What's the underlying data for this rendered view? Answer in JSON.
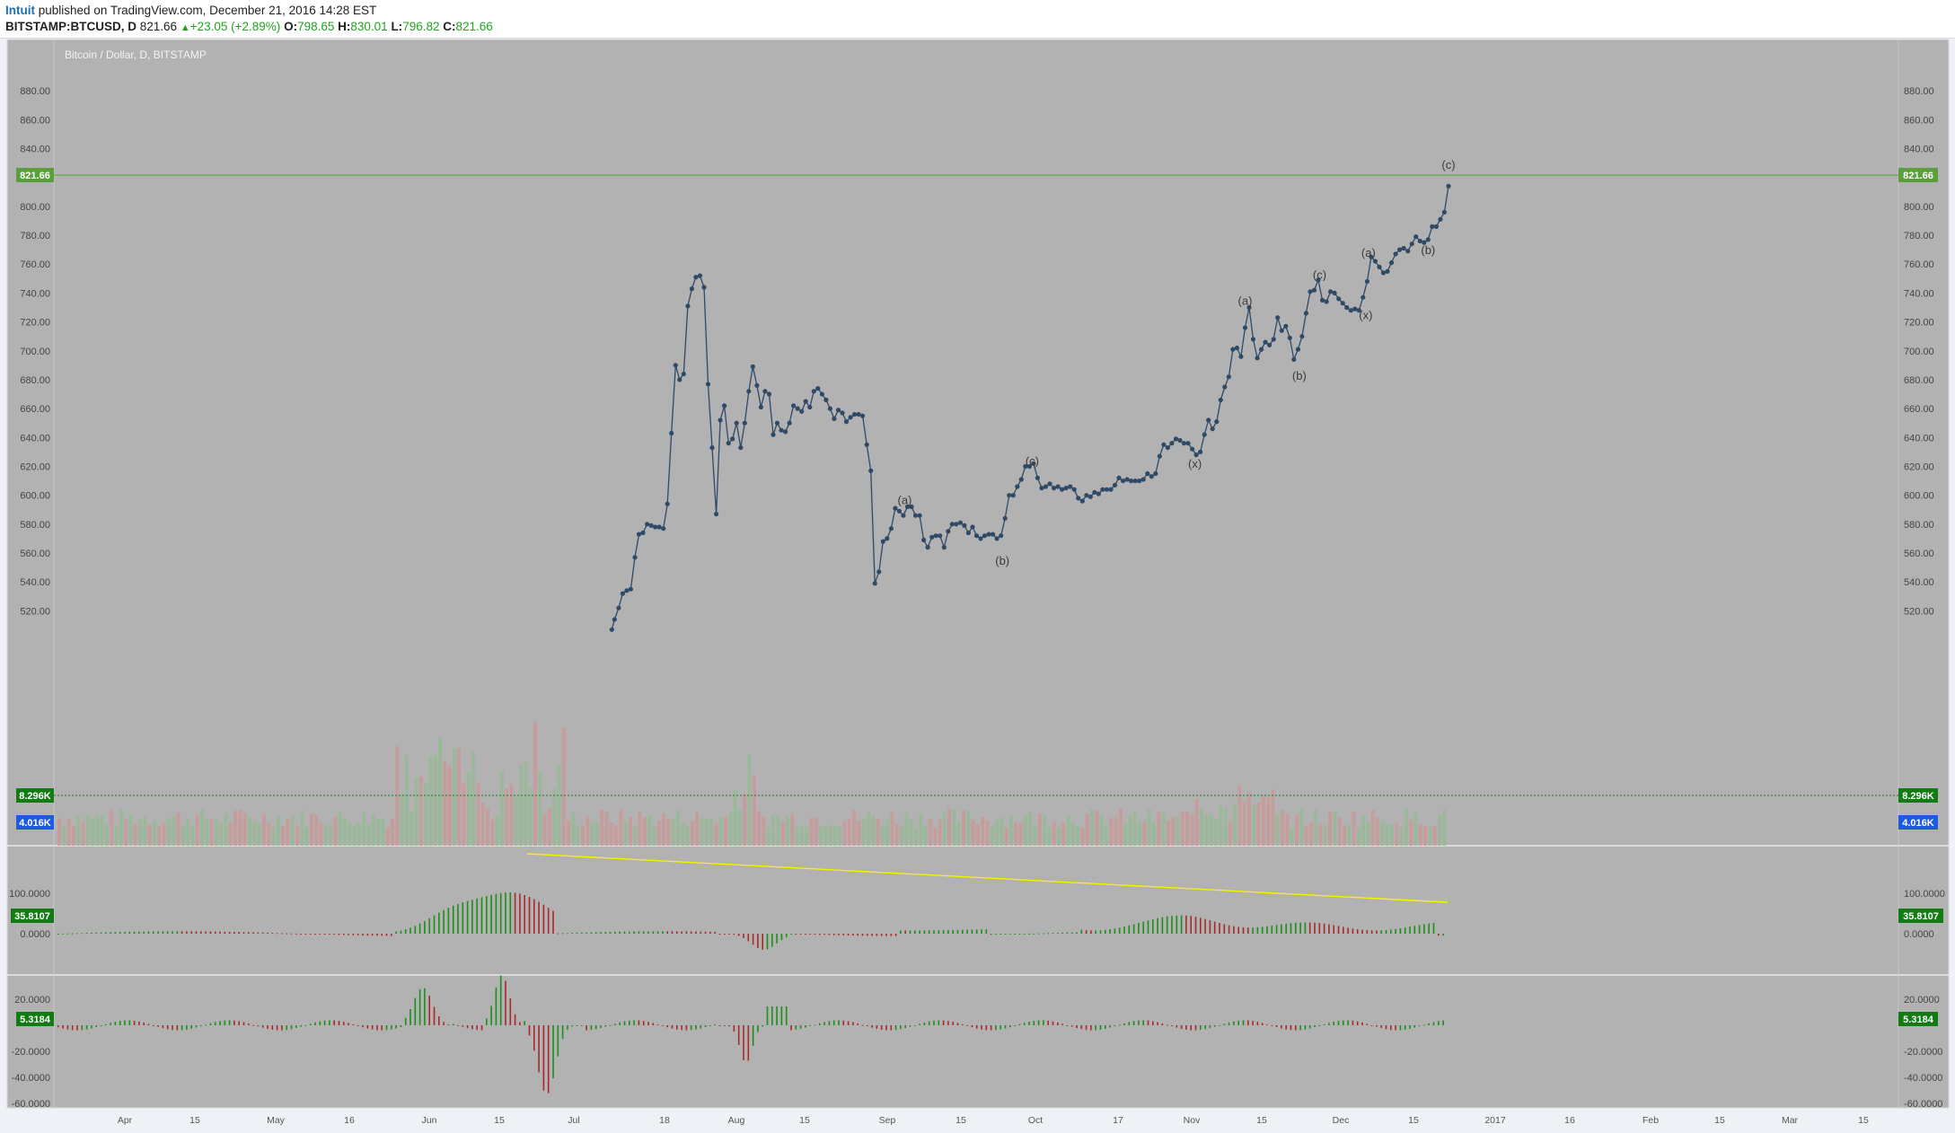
{
  "header": {
    "author": "Intuit",
    "published_text": "published on TradingView.com, December 21, 2016 14:28 EST",
    "symbol": "BITSTAMP:BTCUSD, D",
    "last": "821.66",
    "change": "+23.05 (+2.89%)",
    "o_label": "O:",
    "o": "798.65",
    "h_label": "H:",
    "h": "830.01",
    "l_label": "L:",
    "l": "796.82",
    "c_label": "C:",
    "c": "821.66"
  },
  "chart_data": {
    "type": "line",
    "title": "Bitcoin / Dollar, D, BITSTAMP",
    "price_ticks": [
      "880.00",
      "860.00",
      "840.00",
      "820.00",
      "800.00",
      "780.00",
      "760.00",
      "740.00",
      "720.00",
      "700.00",
      "680.00",
      "660.00",
      "640.00",
      "620.00",
      "600.00",
      "580.00",
      "560.00",
      "540.00",
      "520.00"
    ],
    "price_ylim": [
      505,
      890
    ],
    "last_price_label": "821.66",
    "volume_last_label": "8.296K",
    "volume_ma_label": "4.016K",
    "osc1_ticks": [
      "100.0000",
      "0.0000"
    ],
    "osc1_label": "35.8107",
    "osc2_ticks": [
      "20.0000",
      "-20.0000",
      "-40.0000",
      "-60.0000"
    ],
    "osc2_label": "5.3184",
    "x_labels": [
      "Apr",
      "15",
      "May",
      "16",
      "Jun",
      "15",
      "Jul",
      "18",
      "Aug",
      "15",
      "Sep",
      "15",
      "Oct",
      "17",
      "Nov",
      "15",
      "Dec",
      "15",
      "2017",
      "16",
      "Feb",
      "15",
      "Mar",
      "15"
    ],
    "series": [
      {
        "values": [
          [
            43.0,
            507
          ],
          [
            43.2,
            514
          ],
          [
            43.5,
            522
          ],
          [
            43.8,
            532
          ],
          [
            44.1,
            534
          ],
          [
            44.4,
            535
          ],
          [
            44.7,
            557
          ],
          [
            45.0,
            573
          ],
          [
            45.3,
            574
          ],
          [
            45.6,
            580
          ],
          [
            45.9,
            579
          ],
          [
            46.2,
            578
          ],
          [
            46.5,
            578
          ],
          [
            46.8,
            577
          ],
          [
            47.1,
            594
          ],
          [
            47.4,
            643
          ],
          [
            47.7,
            690
          ],
          [
            48.0,
            680
          ],
          [
            48.3,
            684
          ],
          [
            48.6,
            731
          ],
          [
            48.9,
            743
          ],
          [
            49.2,
            751
          ],
          [
            49.5,
            752
          ],
          [
            49.8,
            744
          ],
          [
            50.1,
            677
          ],
          [
            50.4,
            633
          ],
          [
            50.7,
            587
          ],
          [
            51.0,
            652
          ],
          [
            51.3,
            662
          ],
          [
            51.6,
            636
          ],
          [
            51.9,
            639
          ],
          [
            52.2,
            650
          ],
          [
            52.5,
            633
          ],
          [
            52.8,
            650
          ],
          [
            53.1,
            672
          ],
          [
            53.4,
            689
          ],
          [
            53.7,
            676
          ],
          [
            54.0,
            661
          ],
          [
            54.3,
            672
          ],
          [
            54.6,
            670
          ],
          [
            54.9,
            642
          ],
          [
            55.2,
            650
          ],
          [
            55.5,
            645
          ],
          [
            55.8,
            644
          ],
          [
            56.1,
            650
          ],
          [
            56.4,
            662
          ],
          [
            56.7,
            660
          ],
          [
            57.0,
            658
          ],
          [
            57.3,
            665
          ],
          [
            57.6,
            661
          ],
          [
            57.9,
            672
          ],
          [
            58.2,
            674
          ],
          [
            58.5,
            670
          ],
          [
            58.8,
            666
          ],
          [
            59.1,
            660
          ],
          [
            59.4,
            653
          ],
          [
            59.7,
            659
          ],
          [
            60.0,
            657
          ],
          [
            60.3,
            651
          ],
          [
            60.6,
            654
          ],
          [
            60.9,
            656
          ],
          [
            61.2,
            656
          ],
          [
            61.5,
            655
          ],
          [
            61.8,
            635
          ],
          [
            62.1,
            617
          ],
          [
            62.4,
            539
          ],
          [
            62.7,
            547
          ],
          [
            63.0,
            568
          ],
          [
            63.3,
            570
          ],
          [
            63.6,
            577
          ],
          [
            63.9,
            591
          ],
          [
            64.2,
            589
          ],
          [
            64.5,
            586
          ],
          [
            64.8,
            592
          ],
          [
            65.1,
            592
          ],
          [
            65.4,
            586
          ],
          [
            65.7,
            586
          ],
          [
            66.0,
            569
          ],
          [
            66.3,
            564
          ],
          [
            66.6,
            571
          ],
          [
            66.9,
            572
          ],
          [
            67.2,
            572
          ],
          [
            67.5,
            564
          ],
          [
            67.8,
            575
          ],
          [
            68.1,
            580
          ],
          [
            68.4,
            580
          ],
          [
            68.7,
            581
          ],
          [
            69.0,
            579
          ],
          [
            69.3,
            574
          ],
          [
            69.6,
            578
          ],
          [
            69.9,
            572
          ],
          [
            70.2,
            570
          ],
          [
            70.5,
            572
          ],
          [
            70.8,
            573
          ],
          [
            71.1,
            573
          ],
          [
            71.4,
            570
          ],
          [
            71.7,
            572
          ],
          [
            72.0,
            584
          ],
          [
            72.3,
            600
          ],
          [
            72.6,
            600
          ],
          [
            72.9,
            606
          ],
          [
            73.2,
            611
          ],
          [
            73.5,
            620
          ],
          [
            73.8,
            620
          ],
          [
            74.1,
            622
          ],
          [
            74.4,
            612
          ],
          [
            74.7,
            605
          ],
          [
            75.0,
            606
          ],
          [
            75.3,
            608
          ],
          [
            75.6,
            605
          ],
          [
            75.9,
            606
          ],
          [
            76.2,
            604
          ],
          [
            76.5,
            605
          ],
          [
            76.8,
            606
          ],
          [
            77.1,
            604
          ],
          [
            77.4,
            598
          ],
          [
            77.7,
            596
          ],
          [
            78.0,
            600
          ],
          [
            78.3,
            599
          ],
          [
            78.6,
            602
          ],
          [
            78.9,
            601
          ],
          [
            79.2,
            604
          ],
          [
            79.5,
            604
          ],
          [
            79.8,
            604
          ],
          [
            80.1,
            607
          ],
          [
            80.4,
            612
          ],
          [
            80.7,
            610
          ],
          [
            81.0,
            611
          ],
          [
            81.3,
            610
          ],
          [
            81.6,
            610
          ],
          [
            81.9,
            610
          ],
          [
            82.2,
            611
          ],
          [
            82.5,
            615
          ],
          [
            82.8,
            613
          ],
          [
            83.1,
            615
          ],
          [
            83.4,
            627
          ],
          [
            83.7,
            635
          ],
          [
            84.0,
            633
          ],
          [
            84.3,
            636
          ],
          [
            84.6,
            639
          ],
          [
            84.9,
            638
          ],
          [
            85.2,
            636
          ],
          [
            85.5,
            636
          ],
          [
            85.8,
            632
          ],
          [
            86.1,
            628
          ],
          [
            86.4,
            630
          ],
          [
            86.7,
            642
          ],
          [
            87.0,
            652
          ],
          [
            87.3,
            646
          ],
          [
            87.6,
            651
          ],
          [
            87.9,
            666
          ],
          [
            88.2,
            675
          ],
          [
            88.5,
            682
          ],
          [
            88.8,
            701
          ],
          [
            89.1,
            702
          ],
          [
            89.4,
            696
          ],
          [
            89.7,
            716
          ],
          [
            90.0,
            730
          ],
          [
            90.3,
            708
          ],
          [
            90.6,
            695
          ],
          [
            90.9,
            701
          ],
          [
            91.2,
            706
          ],
          [
            91.5,
            704
          ],
          [
            91.8,
            708
          ],
          [
            92.1,
            723
          ],
          [
            92.4,
            714
          ],
          [
            92.7,
            717
          ],
          [
            93.0,
            709
          ],
          [
            93.3,
            694
          ],
          [
            93.6,
            701
          ],
          [
            93.9,
            710
          ],
          [
            94.2,
            726
          ],
          [
            94.5,
            741
          ],
          [
            94.8,
            742
          ],
          [
            95.1,
            749
          ],
          [
            95.4,
            735
          ],
          [
            95.7,
            734
          ],
          [
            96.0,
            741
          ],
          [
            96.3,
            740
          ],
          [
            96.6,
            736
          ],
          [
            96.9,
            733
          ],
          [
            97.2,
            730
          ],
          [
            97.5,
            728
          ],
          [
            97.8,
            729
          ],
          [
            98.1,
            728
          ],
          [
            98.4,
            737
          ],
          [
            98.7,
            748
          ],
          [
            99.0,
            765
          ],
          [
            99.3,
            762
          ],
          [
            99.6,
            758
          ],
          [
            99.9,
            754
          ],
          [
            100.2,
            755
          ],
          [
            100.5,
            761
          ],
          [
            100.8,
            767
          ],
          [
            101.1,
            770
          ],
          [
            101.4,
            771
          ],
          [
            101.7,
            769
          ],
          [
            102.0,
            774
          ],
          [
            102.3,
            779
          ],
          [
            102.6,
            776
          ],
          [
            102.9,
            775
          ],
          [
            103.2,
            777
          ],
          [
            103.5,
            786
          ],
          [
            103.8,
            786
          ],
          [
            104.1,
            791
          ],
          [
            104.4,
            796
          ],
          [
            104.7,
            814
          ]
        ]
      }
    ],
    "annotations": [
      {
        "text": "(a)",
        "x": 64.6,
        "y": 594
      },
      {
        "text": "(b)",
        "x": 71.8,
        "y": 552
      },
      {
        "text": "(c)",
        "x": 74.0,
        "y": 621
      },
      {
        "text": "(x)",
        "x": 86.0,
        "y": 619
      },
      {
        "text": "(a)",
        "x": 89.7,
        "y": 732
      },
      {
        "text": "(b)",
        "x": 93.7,
        "y": 680
      },
      {
        "text": "(c)",
        "x": 95.2,
        "y": 750
      },
      {
        "text": "(x)",
        "x": 98.6,
        "y": 722
      },
      {
        "text": "(a)",
        "x": 98.8,
        "y": 765
      },
      {
        "text": "(b)",
        "x": 103.2,
        "y": 767
      },
      {
        "text": "(c)",
        "x": 104.7,
        "y": 826
      }
    ]
  },
  "colors": {
    "panel_bg": "#b2b2b2",
    "line": "#2e4a66",
    "up_green": "#1a8f1a",
    "down_red": "#a82a2a",
    "trend_line": "#f5f500",
    "price_tag": "#5aa03a",
    "vol_tag": "#137b13",
    "ma_tag": "#1e5adf"
  }
}
